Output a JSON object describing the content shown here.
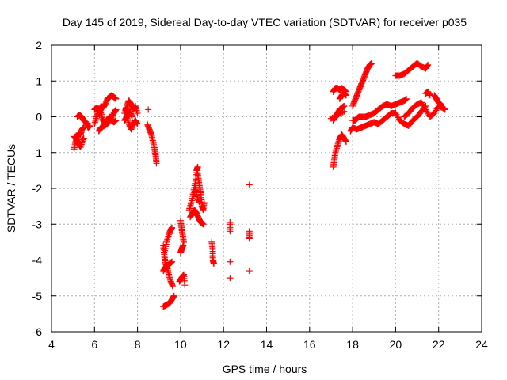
{
  "chart_data": {
    "type": "scatter",
    "title": "Day 145 of 2019, Sidereal Day-to-day VTEC variation (SDTVAR) for receiver p035",
    "xlabel": "GPS time / hours",
    "ylabel": "SDTVAR / TECUs",
    "xlim": [
      4,
      24
    ],
    "ylim": [
      -6,
      2
    ],
    "x_ticks": [
      "4",
      "6",
      "8",
      "10",
      "12",
      "14",
      "16",
      "18",
      "20",
      "22",
      "24"
    ],
    "y_ticks": [
      "2",
      "1",
      "0",
      "-1",
      "-2",
      "-3",
      "-4",
      "-5",
      "-6"
    ],
    "grid": true,
    "marker": "+",
    "color": "#ff0000",
    "series": [
      {
        "name": "SDTVAR",
        "segments": [
          [
            [
              5.05,
              -0.9
            ],
            [
              5.12,
              -0.7
            ],
            [
              5.2,
              -0.55
            ],
            [
              5.28,
              -0.45
            ],
            [
              5.35,
              -0.5
            ],
            [
              5.42,
              -0.35
            ],
            [
              5.5,
              -0.3
            ]
          ],
          [
            [
              5.05,
              -0.55
            ],
            [
              5.15,
              -0.6
            ],
            [
              5.25,
              -0.75
            ],
            [
              5.35,
              -0.85
            ],
            [
              5.45,
              -0.65
            ],
            [
              5.5,
              -0.6
            ]
          ],
          [
            [
              5.2,
              0.0
            ],
            [
              5.3,
              0.05
            ],
            [
              5.4,
              0.0
            ],
            [
              5.5,
              -0.1
            ],
            [
              5.6,
              -0.15
            ],
            [
              5.7,
              -0.3
            ],
            [
              5.8,
              -0.25
            ]
          ],
          [
            [
              6.0,
              -0.2
            ],
            [
              6.1,
              0.0
            ],
            [
              6.2,
              0.15
            ],
            [
              6.3,
              0.3
            ],
            [
              6.4,
              0.25
            ],
            [
              6.5,
              0.35
            ],
            [
              6.6,
              0.5
            ],
            [
              6.7,
              0.55
            ],
            [
              6.8,
              0.6
            ],
            [
              6.9,
              0.55
            ],
            [
              7.0,
              0.5
            ]
          ],
          [
            [
              6.0,
              0.2
            ],
            [
              6.1,
              0.25
            ],
            [
              6.2,
              0.2
            ],
            [
              6.3,
              0.1
            ],
            [
              6.4,
              -0.1
            ],
            [
              6.5,
              -0.2
            ],
            [
              6.6,
              -0.1
            ],
            [
              6.7,
              0.0
            ],
            [
              6.8,
              -0.1
            ],
            [
              6.9,
              -0.15
            ],
            [
              7.0,
              -0.1
            ]
          ],
          [
            [
              6.2,
              -0.4
            ],
            [
              6.3,
              -0.3
            ],
            [
              6.45,
              -0.25
            ],
            [
              6.6,
              -0.2
            ],
            [
              6.75,
              -0.05
            ],
            [
              6.9,
              0.1
            ],
            [
              7.0,
              0.2
            ]
          ],
          [
            [
              7.4,
              0.1
            ],
            [
              7.5,
              0.3
            ],
            [
              7.6,
              0.45
            ],
            [
              7.7,
              0.35
            ],
            [
              7.8,
              0.2
            ],
            [
              7.9,
              0.3
            ],
            [
              8.0,
              0.1
            ]
          ],
          [
            [
              7.4,
              -0.1
            ],
            [
              7.5,
              0.0
            ],
            [
              7.6,
              -0.2
            ],
            [
              7.7,
              -0.35
            ],
            [
              7.8,
              -0.2
            ],
            [
              7.9,
              -0.1
            ],
            [
              8.0,
              -0.2
            ]
          ],
          [
            [
              7.45,
              0.2
            ],
            [
              7.55,
              0.05
            ],
            [
              7.65,
              0.15
            ],
            [
              7.75,
              0.0
            ]
          ],
          [
            [
              8.45,
              -0.2
            ],
            [
              8.55,
              -0.35
            ],
            [
              8.65,
              -0.5
            ],
            [
              8.72,
              -0.7
            ],
            [
              8.8,
              -0.9
            ],
            [
              8.85,
              -1.1
            ],
            [
              8.88,
              -1.3
            ]
          ],
          [
            [
              8.5,
              0.2
            ]
          ],
          [
            [
              9.2,
              -5.3
            ],
            [
              9.35,
              -5.25
            ],
            [
              9.5,
              -5.2
            ],
            [
              9.6,
              -5.1
            ],
            [
              9.7,
              -5.0
            ]
          ],
          [
            [
              9.2,
              -3.6
            ],
            [
              9.25,
              -3.9
            ],
            [
              9.3,
              -4.1
            ],
            [
              9.38,
              -4.2
            ],
            [
              9.45,
              -4.4
            ],
            [
              9.55,
              -4.6
            ],
            [
              9.65,
              -4.75
            ]
          ],
          [
            [
              9.25,
              -3.8
            ],
            [
              9.35,
              -3.5
            ],
            [
              9.45,
              -3.3
            ],
            [
              9.55,
              -3.15
            ],
            [
              9.6,
              -3.1
            ]
          ],
          [
            [
              9.2,
              -4.3
            ],
            [
              9.3,
              -4.2
            ],
            [
              9.4,
              -4.15
            ],
            [
              9.5,
              -4.1
            ],
            [
              9.6,
              -4.05
            ]
          ],
          [
            [
              10.0,
              -2.9
            ],
            [
              10.05,
              -3.1
            ],
            [
              10.1,
              -3.3
            ],
            [
              10.15,
              -3.5
            ]
          ],
          [
            [
              10.0,
              -3.8
            ],
            [
              10.05,
              -3.7
            ],
            [
              10.12,
              -3.6
            ]
          ],
          [
            [
              9.95,
              -4.6
            ],
            [
              10.05,
              -4.5
            ],
            [
              10.15,
              -4.4
            ],
            [
              10.2,
              -4.7
            ]
          ],
          [
            [
              10.4,
              -2.6
            ],
            [
              10.5,
              -2.4
            ],
            [
              10.6,
              -2.1
            ],
            [
              10.7,
              -1.8
            ],
            [
              10.75,
              -1.5
            ],
            [
              10.8,
              -1.4
            ]
          ],
          [
            [
              10.45,
              -2.8
            ],
            [
              10.55,
              -2.7
            ],
            [
              10.65,
              -2.6
            ],
            [
              10.75,
              -2.7
            ],
            [
              10.85,
              -2.85
            ],
            [
              10.95,
              -2.95
            ],
            [
              11.05,
              -3.0
            ]
          ],
          [
            [
              10.8,
              -1.6
            ],
            [
              10.85,
              -1.8
            ],
            [
              10.9,
              -2.0
            ],
            [
              10.95,
              -2.2
            ],
            [
              11.0,
              -2.5
            ],
            [
              11.05,
              -2.6
            ],
            [
              11.1,
              -2.4
            ]
          ],
          [
            [
              10.6,
              -2.2
            ],
            [
              10.7,
              -2.0
            ],
            [
              10.8,
              -2.3
            ],
            [
              10.9,
              -2.4
            ]
          ],
          [
            [
              11.45,
              -3.5
            ],
            [
              11.5,
              -3.7
            ],
            [
              11.5,
              -4.0
            ],
            [
              11.55,
              -4.1
            ]
          ],
          [
            [
              12.3,
              -2.95
            ],
            [
              12.3,
              -3.2
            ]
          ],
          [
            [
              12.3,
              -4.05
            ]
          ],
          [
            [
              12.3,
              -4.5
            ]
          ],
          [
            [
              13.2,
              -1.9
            ]
          ],
          [
            [
              13.2,
              -3.2
            ],
            [
              13.2,
              -3.4
            ]
          ],
          [
            [
              13.2,
              -4.3
            ]
          ],
          [
            [
              17.1,
              0.7
            ],
            [
              17.2,
              0.8
            ],
            [
              17.3,
              0.8
            ],
            [
              17.4,
              0.75
            ],
            [
              17.5,
              0.8
            ],
            [
              17.6,
              0.75
            ],
            [
              17.7,
              0.7
            ]
          ],
          [
            [
              17.1,
              -0.1
            ],
            [
              17.2,
              0.0
            ],
            [
              17.3,
              0.1
            ],
            [
              17.4,
              0.2
            ],
            [
              17.5,
              0.25
            ],
            [
              17.6,
              0.3
            ]
          ],
          [
            [
              17.1,
              -1.4
            ],
            [
              17.15,
              -1.2
            ],
            [
              17.2,
              -1.0
            ],
            [
              17.3,
              -0.8
            ],
            [
              17.4,
              -0.6
            ],
            [
              17.5,
              -0.5
            ],
            [
              17.6,
              -0.6
            ],
            [
              17.7,
              -0.7
            ]
          ],
          [
            [
              17.4,
              0.5
            ],
            [
              17.5,
              0.6
            ],
            [
              17.6,
              0.65
            ],
            [
              17.7,
              0.6
            ]
          ],
          [
            [
              18.0,
              0.3
            ],
            [
              18.1,
              0.45
            ],
            [
              18.2,
              0.6
            ],
            [
              18.3,
              0.75
            ],
            [
              18.4,
              0.9
            ],
            [
              18.5,
              1.05
            ],
            [
              18.6,
              1.2
            ],
            [
              18.7,
              1.35
            ],
            [
              18.8,
              1.45
            ],
            [
              18.9,
              1.5
            ]
          ],
          [
            [
              18.0,
              -0.1
            ],
            [
              18.1,
              -0.1
            ],
            [
              18.2,
              -0.05
            ],
            [
              18.3,
              0.0
            ],
            [
              18.4,
              0.0
            ],
            [
              18.6,
              0.0
            ],
            [
              18.8,
              0.05
            ],
            [
              19.0,
              0.1
            ],
            [
              19.2,
              0.2
            ],
            [
              19.4,
              0.3
            ],
            [
              19.6,
              0.35
            ],
            [
              19.8,
              0.3
            ],
            [
              20.0,
              0.35
            ],
            [
              20.2,
              0.4
            ],
            [
              20.4,
              0.45
            ],
            [
              20.5,
              0.5
            ]
          ],
          [
            [
              17.9,
              -0.4
            ],
            [
              18.0,
              -0.3
            ],
            [
              18.2,
              -0.35
            ],
            [
              18.4,
              -0.3
            ],
            [
              18.6,
              -0.25
            ],
            [
              18.8,
              -0.2
            ],
            [
              19.0,
              -0.15
            ],
            [
              19.2,
              -0.2
            ],
            [
              19.4,
              -0.1
            ],
            [
              19.6,
              0.0
            ],
            [
              19.8,
              0.1
            ],
            [
              20.0,
              0.1
            ],
            [
              20.2,
              -0.1
            ],
            [
              20.4,
              -0.2
            ],
            [
              20.6,
              -0.25
            ],
            [
              20.8,
              -0.1
            ],
            [
              21.0,
              0.0
            ],
            [
              21.2,
              0.15
            ],
            [
              21.4,
              0.3
            ]
          ],
          [
            [
              17.0,
              -0.05
            ],
            [
              17.3,
              0.05
            ],
            [
              17.6,
              0.15
            ]
          ],
          [
            [
              20.0,
              1.15
            ],
            [
              20.2,
              1.15
            ],
            [
              20.4,
              1.2
            ],
            [
              20.6,
              1.3
            ],
            [
              20.8,
              1.4
            ],
            [
              21.0,
              1.5
            ],
            [
              21.2,
              1.4
            ],
            [
              21.4,
              1.35
            ],
            [
              21.5,
              1.45
            ]
          ],
          [
            [
              20.4,
              0.0
            ],
            [
              20.6,
              0.1
            ],
            [
              20.8,
              0.25
            ],
            [
              21.0,
              0.35
            ],
            [
              21.2,
              0.4
            ],
            [
              21.4,
              0.2
            ],
            [
              21.6,
              0.0
            ],
            [
              21.8,
              0.1
            ],
            [
              22.0,
              0.3
            ],
            [
              22.2,
              0.25
            ],
            [
              22.3,
              0.2
            ]
          ],
          [
            [
              21.4,
              0.65
            ],
            [
              21.5,
              0.7
            ],
            [
              21.6,
              0.6
            ]
          ],
          [
            [
              21.8,
              0.6
            ],
            [
              21.9,
              0.5
            ],
            [
              22.0,
              0.4
            ],
            [
              22.1,
              0.35
            ]
          ]
        ]
      }
    ]
  }
}
